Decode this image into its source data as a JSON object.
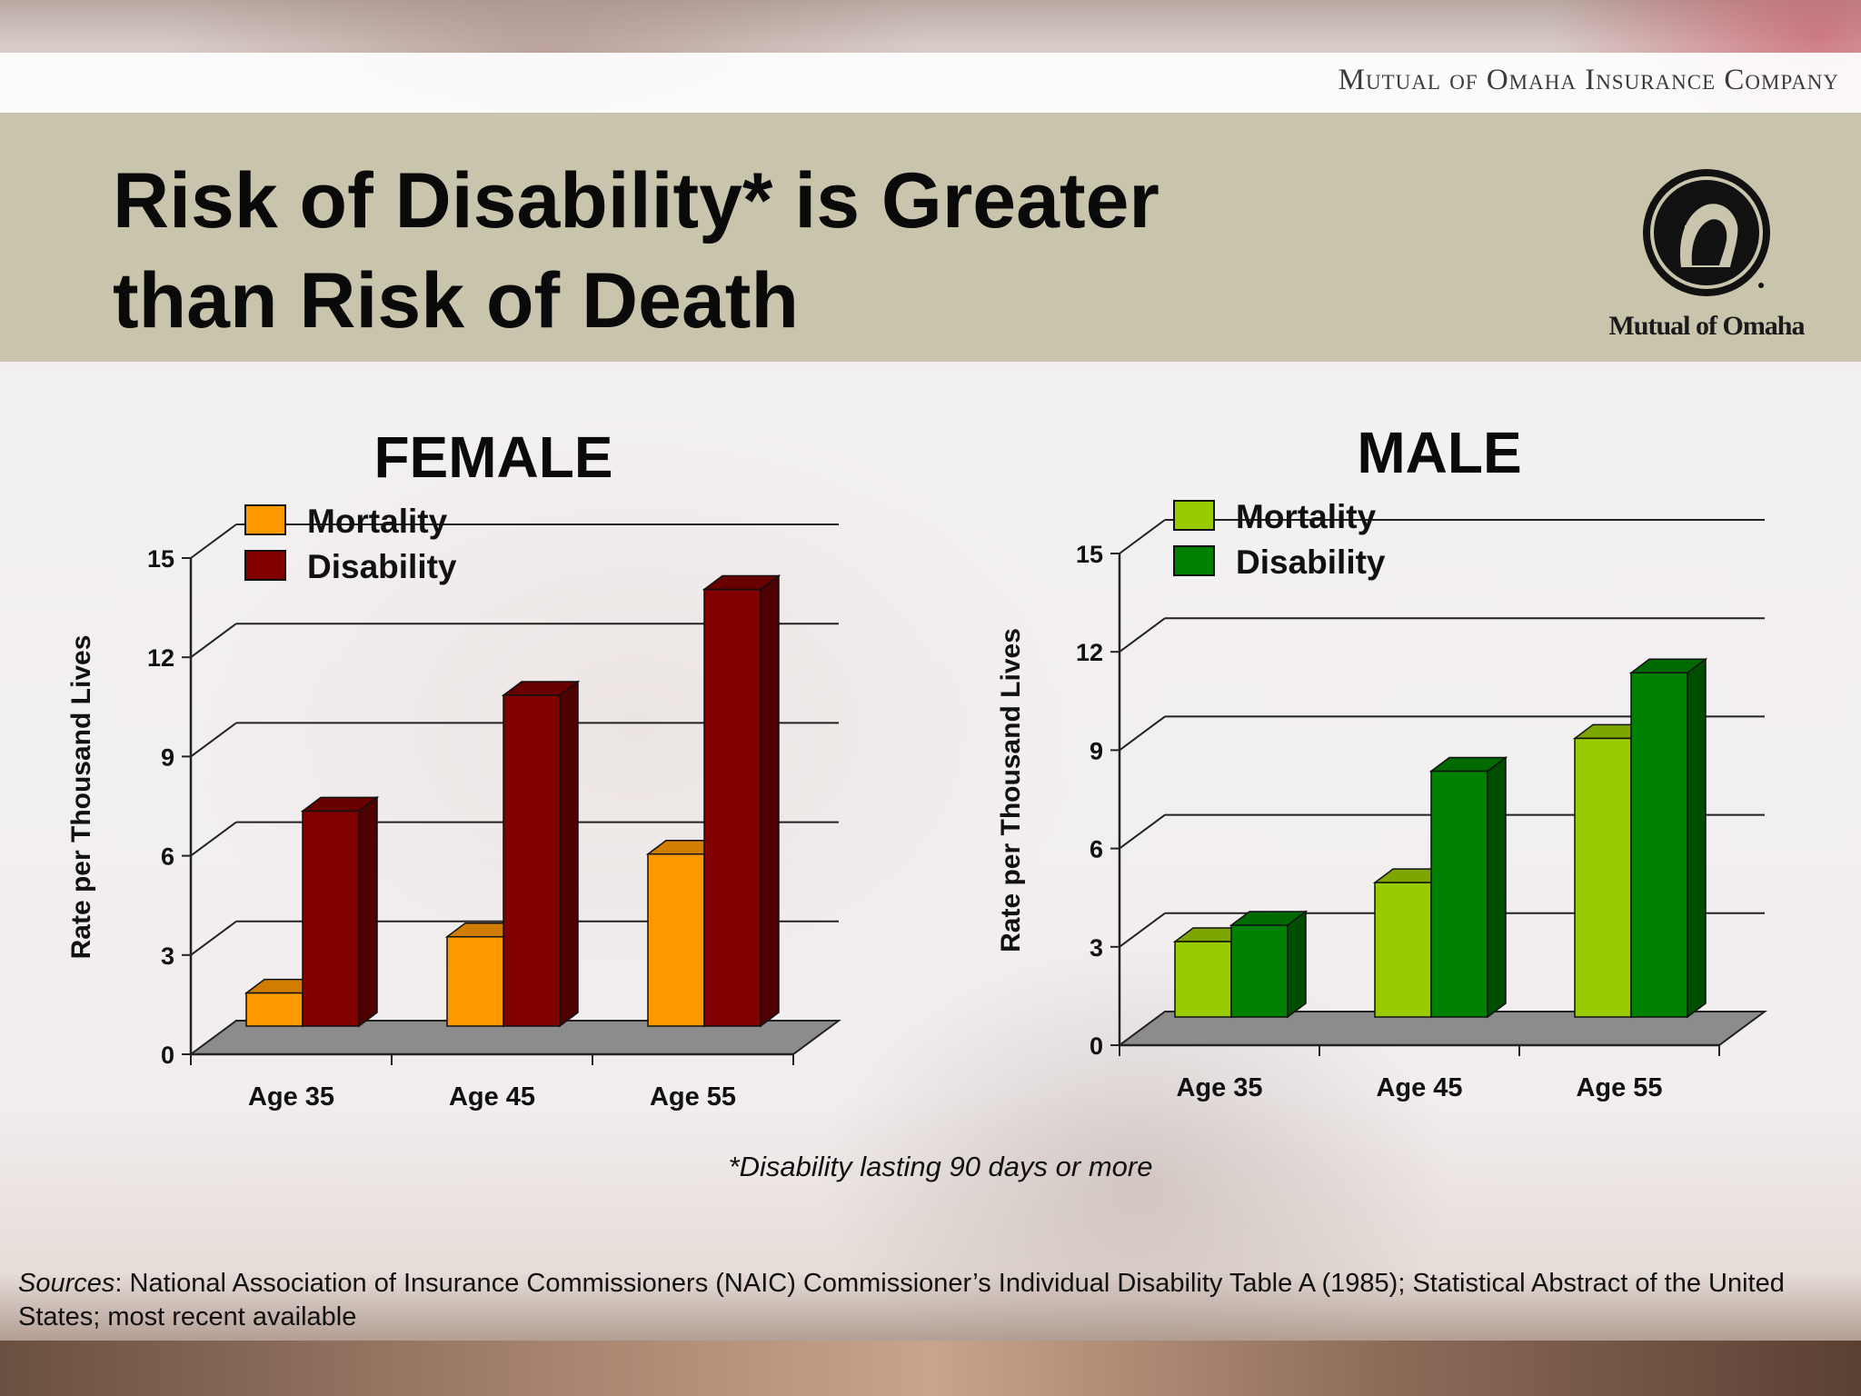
{
  "header": {
    "company": "Mutual of Omaha Insurance Company",
    "title": "Risk of Disability* is Greater than Risk of Death",
    "logo_text": "Mutual of Omaha"
  },
  "footnote": "*Disability lasting 90 days or more",
  "sources": {
    "label": "Sources",
    "text": ": National Association of Insurance Commissioners (NAIC) Commissioner’s Individual Disability Table A (1985); Statistical Abstract of the United States; most recent available"
  },
  "chart_data": [
    {
      "type": "bar",
      "title": "FEMALE",
      "ylabel": "Rate per Thousand Lives",
      "xlabel": "",
      "categories": [
        "Age 35",
        "Age 45",
        "Age 55"
      ],
      "ylim": [
        0,
        15
      ],
      "yticks": [
        0,
        3,
        6,
        9,
        12,
        15
      ],
      "grid": true,
      "legend": "top-left",
      "series": [
        {
          "name": "Mortality",
          "values": [
            1.0,
            2.7,
            5.2
          ],
          "color": "#ff9900"
        },
        {
          "name": "Disability",
          "values": [
            6.5,
            10.0,
            13.2
          ],
          "color": "#800000"
        }
      ]
    },
    {
      "type": "bar",
      "title": "MALE",
      "ylabel": "Rate per Thousand Lives",
      "xlabel": "",
      "categories": [
        "Age 35",
        "Age 45",
        "Age 55"
      ],
      "ylim": [
        0,
        15
      ],
      "yticks": [
        0,
        3,
        6,
        9,
        12,
        15
      ],
      "grid": true,
      "legend": "top-left",
      "series": [
        {
          "name": "Mortality",
          "values": [
            2.3,
            4.1,
            8.5
          ],
          "color": "#99cc00"
        },
        {
          "name": "Disability",
          "values": [
            2.8,
            7.5,
            10.5
          ],
          "color": "#008000"
        }
      ]
    }
  ]
}
